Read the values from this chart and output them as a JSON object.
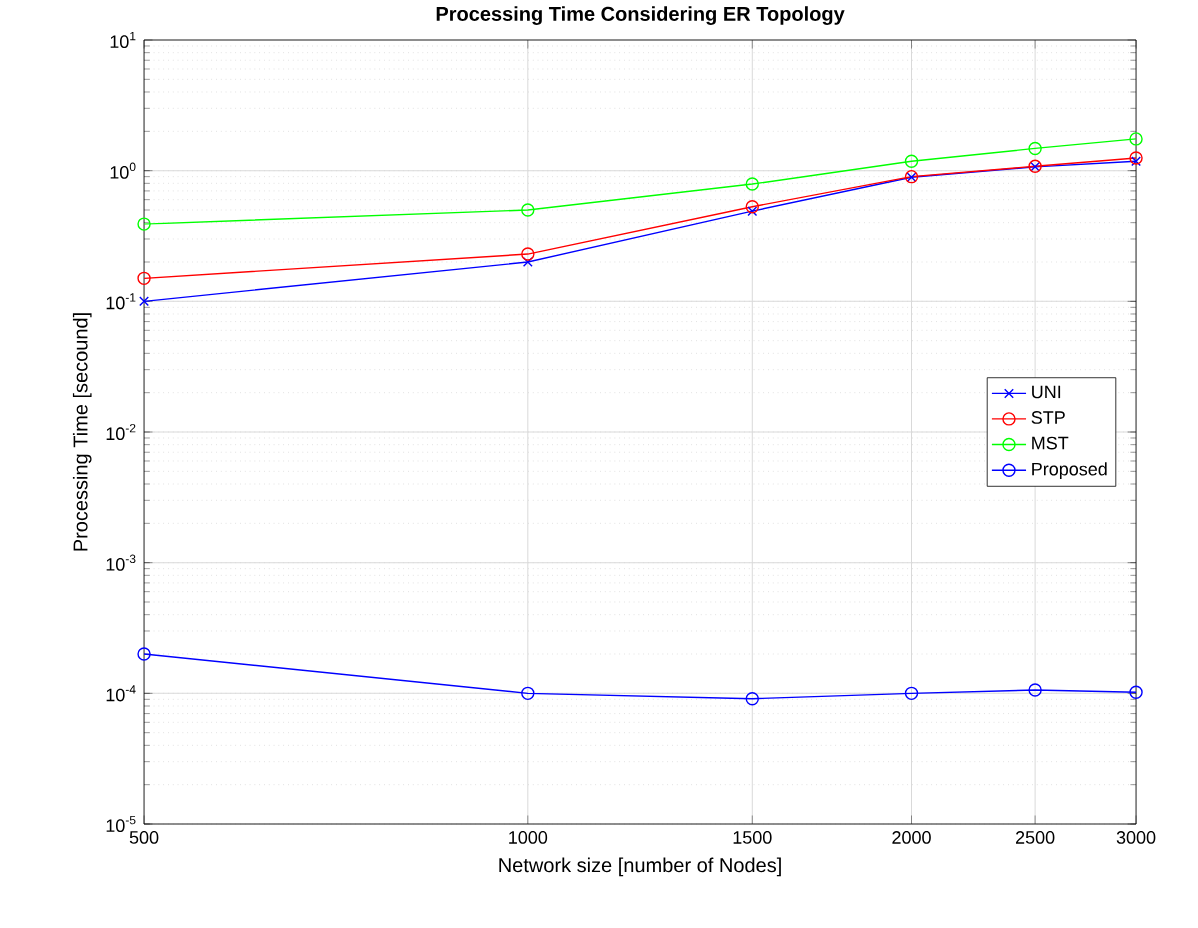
{
  "chart_data": {
    "type": "line",
    "title": "Processing Time Considering ER Topology",
    "xlabel": "Network size [number of Nodes]",
    "ylabel": "Processing Time [secound]",
    "x": [
      500,
      1000,
      1500,
      2000,
      2500,
      3000
    ],
    "series": [
      {
        "name": "UNI",
        "color": "#0000ff",
        "marker": "cross",
        "values": [
          0.1,
          0.2,
          0.49,
          0.89,
          1.07,
          1.18
        ]
      },
      {
        "name": "STP",
        "color": "#ff0000",
        "marker": "circle",
        "values": [
          0.15,
          0.23,
          0.53,
          0.9,
          1.08,
          1.25
        ]
      },
      {
        "name": "MST",
        "color": "#00ff00",
        "marker": "circle",
        "values": [
          0.39,
          0.5,
          0.79,
          1.18,
          1.48,
          1.75
        ]
      },
      {
        "name": "Proposed",
        "color": "#0000ff",
        "marker": "circle",
        "values": [
          0.0002,
          0.0001,
          9.1e-05,
          0.0001,
          0.000106,
          0.000102
        ]
      }
    ],
    "log": "xy",
    "xlim": [
      500,
      3000
    ],
    "ylim": [
      1e-05,
      10
    ],
    "xticks": [
      500,
      1000,
      1500,
      2000,
      2500,
      3000
    ],
    "yticks": [
      {
        "value": 1e-05,
        "label": "10$^{-5}$"
      },
      {
        "value": 0.0001,
        "label": "10$^{-4}$"
      },
      {
        "value": 0.001,
        "label": "10$^{-3}$"
      },
      {
        "value": 0.01,
        "label": "10$^{-2}$"
      },
      {
        "value": 0.1,
        "label": "10$^{-1}$"
      },
      {
        "value": 1,
        "label": "10$^{0}$"
      },
      {
        "value": 10,
        "label": "10$^{1}$"
      }
    ],
    "grid": true,
    "legend": "right",
    "line_style": "solid"
  }
}
